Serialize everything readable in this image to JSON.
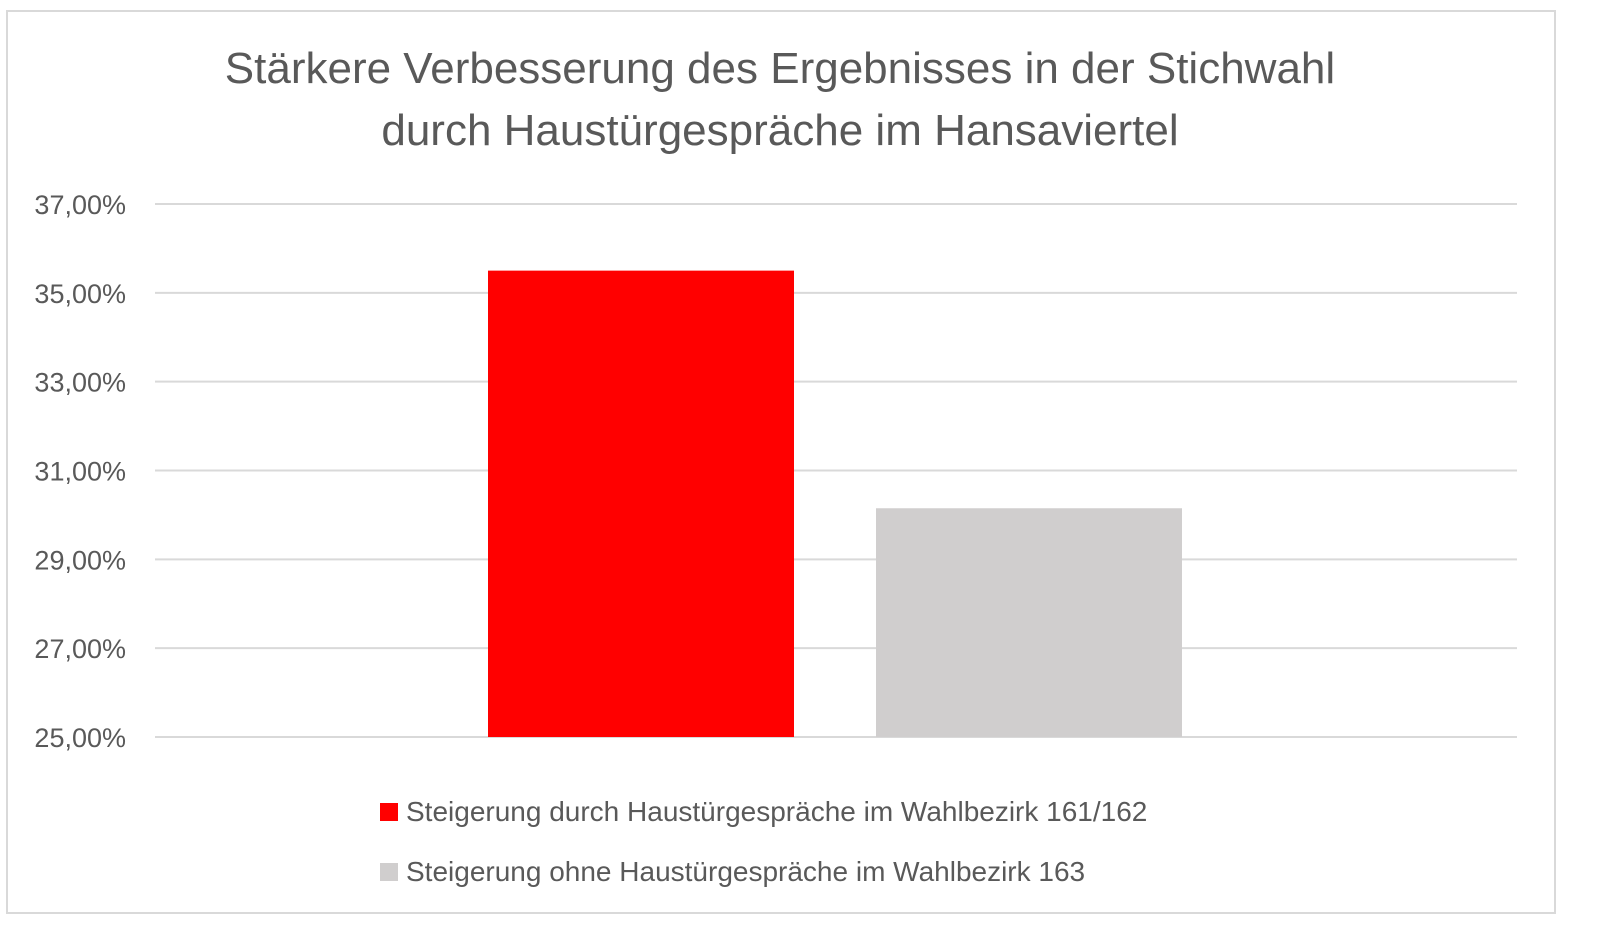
{
  "chart_data": {
    "type": "bar",
    "title_lines": [
      "Stärkere Verbesserung des Ergebnisses in der Stichwahl",
      "durch Haustürgespräche im Hansaviertel"
    ],
    "xlabel": "",
    "ylabel": "",
    "ylim": [
      25,
      37
    ],
    "yticks": [
      25,
      27,
      29,
      31,
      33,
      35,
      37
    ],
    "ytick_labels": [
      "25,00%",
      "27,00%",
      "29,00%",
      "31,00%",
      "33,00%",
      "35,00%",
      "37,00%"
    ],
    "grid": true,
    "legend_position": "bottom",
    "series": [
      {
        "name": "Steigerung durch Haustürgespräche im Wahlbezirk 161/162",
        "value": 35.5,
        "color": "#ff0000"
      },
      {
        "name": "Steigerung ohne Haustürgespräche im Wahlbezirk 163",
        "value": 30.15,
        "color": "#d0cece"
      }
    ]
  }
}
